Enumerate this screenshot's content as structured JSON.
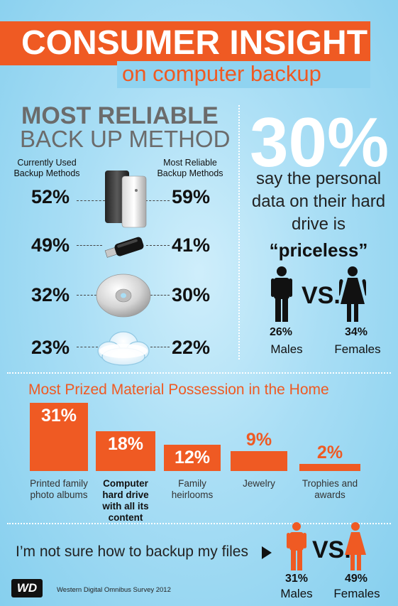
{
  "header": {
    "title": "CONSUMER INSIGHT",
    "subtitle": "on computer backup"
  },
  "reliable": {
    "title_line1": "MOST RELIABLE",
    "title_line2": "BACK UP METHOD",
    "col_left": "Currently Used Backup Methods",
    "col_right": "Most Reliable Backup Methods",
    "rows": [
      {
        "device": "external-hard-drive",
        "current": "52%",
        "reliable": "59%"
      },
      {
        "device": "usb-flash-drive",
        "current": "49%",
        "reliable": "41%"
      },
      {
        "device": "cd-dvd-disc",
        "current": "32%",
        "reliable": "30%"
      },
      {
        "device": "cloud",
        "current": "23%",
        "reliable": "22%"
      }
    ]
  },
  "priceless": {
    "big_pct": "30%",
    "text": "say the personal data on their hard drive is",
    "quote": "“priceless”",
    "vs": "VS.",
    "males_pct": "26%",
    "males_label": "Males",
    "females_pct": "34%",
    "females_label": "Females"
  },
  "prized": {
    "title": "Most Prized Material Possession in the Home",
    "items": [
      {
        "value_label": "31%",
        "value": 31,
        "label": "Printed family photo albums",
        "bold": false
      },
      {
        "value_label": "18%",
        "value": 18,
        "label": "Computer hard drive with all its content",
        "bold": true
      },
      {
        "value_label": "12%",
        "value": 12,
        "label": "Family heirlooms",
        "bold": false
      },
      {
        "value_label": "9%",
        "value": 9,
        "label": "Jewelry",
        "bold": false
      },
      {
        "value_label": "2%",
        "value": 2,
        "label": "Trophies and awards",
        "bold": false
      }
    ]
  },
  "unsure": {
    "text": "I’m not sure how to backup my files",
    "vs": "VS.",
    "males_pct": "31%",
    "males_label": "Males",
    "females_pct": "49%",
    "females_label": "Females"
  },
  "footer": {
    "logo": "WD",
    "source": "Western Digital Omnibus Survey 2012"
  },
  "colors": {
    "accent": "#ef5a23",
    "background": "#a9def5",
    "white": "#ffffff",
    "text": "#111111"
  }
}
